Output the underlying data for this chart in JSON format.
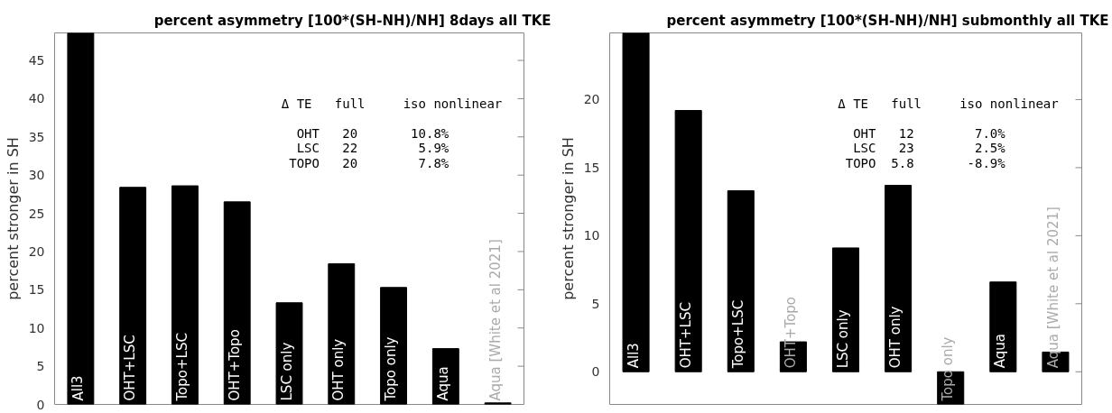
{
  "chart_data": [
    {
      "type": "bar",
      "title": "percent asymmetry [100*(SH-NH)/NH] 8days all TKE",
      "ylabel": "percent stronger in SH",
      "categories": [
        "All3",
        "OHT+LSC",
        "Topo+LSC",
        "OHT+Topo",
        "LSC only",
        "OHT only",
        "Topo only",
        "Aqua",
        "Aqua [White et al 2021]"
      ],
      "values": [
        48.6,
        28.4,
        28.6,
        26.5,
        13.3,
        18.4,
        15.3,
        7.3,
        0.2
      ],
      "color": "#000000",
      "ylim": [
        0,
        48.6
      ],
      "yticks": [
        0,
        5,
        10,
        15,
        20,
        25,
        30,
        35,
        40,
        45
      ],
      "tick_labels": "y",
      "grid": false,
      "annotations": [
        "Δ TE   full     iso nonlinear",
        "  OHT   20       10.8%",
        "  LSC   22        5.9%",
        " TOPO   20        7.8%"
      ]
    },
    {
      "type": "bar",
      "title": "percent asymmetry [100*(SH-NH)/NH] submonthly all TKE",
      "ylabel": "percent stronger in SH",
      "categories": [
        "All3",
        "OHT+LSC",
        "Topo+LSC",
        "OHT+Topo",
        "LSC only",
        "OHT only",
        "Topo only",
        "Aqua",
        "Aqua [White et al 2021]"
      ],
      "values": [
        24.9,
        19.2,
        13.3,
        2.2,
        9.1,
        13.7,
        -2.4,
        6.6,
        1.45
      ],
      "color": "#000000",
      "ylim": [
        -2.4,
        24.9
      ],
      "yticks": [
        0,
        5,
        10,
        15,
        20
      ],
      "tick_labels": "y",
      "grid": false,
      "annotations": [
        "Δ TE   full     iso nonlinear",
        "  OHT   12        7.0%",
        "  LSC   23        2.5%",
        " TOPO  5.8       -8.9%"
      ]
    }
  ]
}
